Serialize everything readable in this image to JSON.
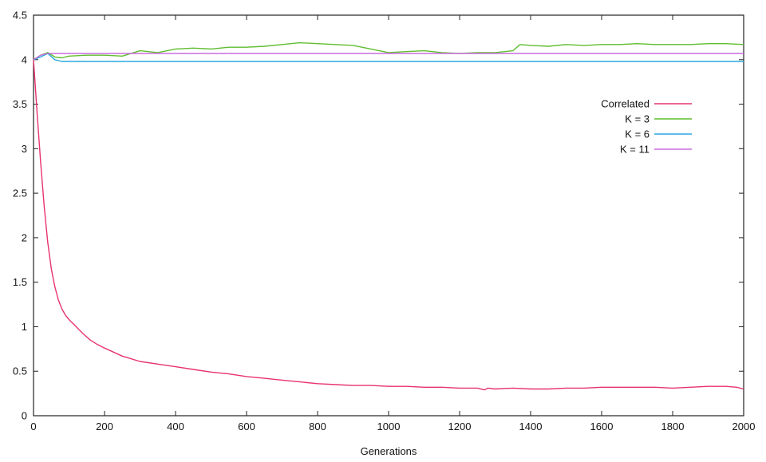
{
  "chart_data": {
    "type": "line",
    "title": "",
    "xlabel": "Generations",
    "ylabel": "",
    "xlim": [
      0,
      2000
    ],
    "ylim": [
      0,
      4.5
    ],
    "x_ticks": [
      "0",
      "200",
      "400",
      "600",
      "800",
      "1000",
      "1200",
      "1400",
      "1600",
      "1800",
      "2000"
    ],
    "y_ticks": [
      "0",
      "0.5",
      "1",
      "1.5",
      "2",
      "2.5",
      "3",
      "3.5",
      "4",
      "4.5"
    ],
    "grid": false,
    "legend_position": "top-right",
    "series": [
      {
        "name": "Correlated",
        "color": "#e8336e",
        "x": [
          0,
          10,
          20,
          30,
          40,
          50,
          60,
          70,
          80,
          90,
          100,
          120,
          140,
          160,
          180,
          200,
          250,
          300,
          350,
          400,
          450,
          500,
          550,
          600,
          650,
          700,
          750,
          800,
          850,
          900,
          950,
          1000,
          1050,
          1100,
          1150,
          1200,
          1250,
          1270,
          1280,
          1300,
          1350,
          1400,
          1450,
          1500,
          1550,
          1600,
          1650,
          1700,
          1750,
          1800,
          1850,
          1900,
          1950,
          1980,
          2000
        ],
        "y": [
          4.0,
          3.4,
          2.85,
          2.35,
          1.95,
          1.65,
          1.45,
          1.3,
          1.2,
          1.13,
          1.08,
          1.0,
          0.92,
          0.85,
          0.8,
          0.76,
          0.67,
          0.61,
          0.58,
          0.55,
          0.52,
          0.49,
          0.47,
          0.44,
          0.42,
          0.4,
          0.38,
          0.36,
          0.35,
          0.34,
          0.34,
          0.33,
          0.33,
          0.32,
          0.32,
          0.31,
          0.31,
          0.29,
          0.31,
          0.3,
          0.31,
          0.3,
          0.3,
          0.31,
          0.31,
          0.32,
          0.32,
          0.32,
          0.32,
          0.31,
          0.32,
          0.33,
          0.33,
          0.32,
          0.3
        ]
      },
      {
        "name": "K = 3",
        "color": "#5fbd2f",
        "x": [
          0,
          20,
          40,
          60,
          80,
          100,
          150,
          200,
          250,
          300,
          350,
          400,
          450,
          500,
          550,
          600,
          650,
          700,
          750,
          800,
          850,
          900,
          950,
          1000,
          1050,
          1100,
          1150,
          1200,
          1250,
          1300,
          1350,
          1370,
          1400,
          1450,
          1500,
          1550,
          1600,
          1650,
          1700,
          1750,
          1800,
          1850,
          1900,
          1950,
          2000
        ],
        "y": [
          4.0,
          4.05,
          4.08,
          4.03,
          4.02,
          4.04,
          4.05,
          4.05,
          4.04,
          4.1,
          4.08,
          4.12,
          4.13,
          4.12,
          4.14,
          4.14,
          4.15,
          4.17,
          4.19,
          4.18,
          4.17,
          4.16,
          4.12,
          4.08,
          4.09,
          4.1,
          4.08,
          4.07,
          4.08,
          4.08,
          4.1,
          4.17,
          4.16,
          4.15,
          4.17,
          4.16,
          4.17,
          4.17,
          4.18,
          4.17,
          4.17,
          4.17,
          4.18,
          4.18,
          4.17
        ]
      },
      {
        "name": "K = 6",
        "color": "#2aa9e0",
        "x": [
          0,
          20,
          40,
          60,
          80,
          100,
          200,
          400,
          600,
          800,
          1000,
          1200,
          1400,
          1600,
          1800,
          2000
        ],
        "y": [
          4.0,
          4.03,
          4.07,
          4.0,
          3.98,
          3.98,
          3.98,
          3.98,
          3.98,
          3.98,
          3.98,
          3.98,
          3.98,
          3.98,
          3.98,
          3.98
        ]
      },
      {
        "name": "K = 11",
        "color": "#c86ddd",
        "x": [
          0,
          20,
          40,
          60,
          80,
          100,
          200,
          400,
          600,
          800,
          1000,
          1200,
          1400,
          1600,
          1800,
          2000
        ],
        "y": [
          4.0,
          4.05,
          4.07,
          4.07,
          4.07,
          4.07,
          4.07,
          4.07,
          4.07,
          4.07,
          4.07,
          4.07,
          4.07,
          4.07,
          4.07,
          4.07
        ]
      }
    ]
  }
}
